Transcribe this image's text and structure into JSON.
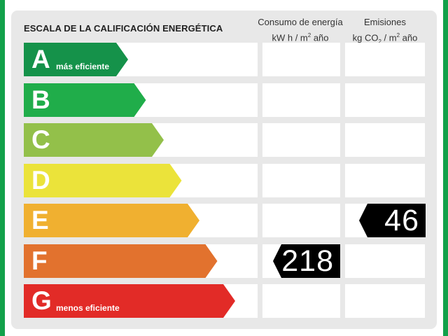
{
  "title": "ESCALA DE LA CALIFICACIÓN ENERGÉTICA",
  "headers": {
    "energy_line1": "Consumo de energía",
    "energy_line2_pre": "kW h  / m",
    "energy_line2_sup": "2",
    "energy_line2_post": " año",
    "emis_line1": "Emisiones",
    "emis_line2_pre": "kg CO",
    "emis_line2_sub": "2",
    "emis_line2_mid": "  / m",
    "emis_line2_sup": "2",
    "emis_line2_post": " año"
  },
  "ratings": [
    {
      "letter": "A",
      "label": "más eficiente",
      "color": "#15924a"
    },
    {
      "letter": "B",
      "label": "",
      "color": "#20ad4a"
    },
    {
      "letter": "C",
      "label": "",
      "color": "#93c04a"
    },
    {
      "letter": "D",
      "label": "",
      "color": "#ebe33a"
    },
    {
      "letter": "E",
      "label": "",
      "color": "#f0b030"
    },
    {
      "letter": "F",
      "label": "",
      "color": "#e2722e"
    },
    {
      "letter": "G",
      "label": "menos eficiente",
      "color": "#e22b27"
    }
  ],
  "indicators": {
    "energy": {
      "value": "218",
      "rating": "F"
    },
    "emissions": {
      "value": "46",
      "rating": "E"
    }
  }
}
